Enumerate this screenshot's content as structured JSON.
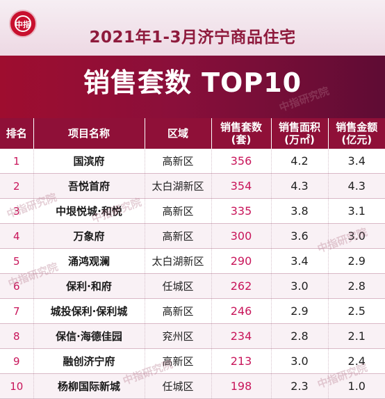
{
  "header": {
    "logo_text": "中指",
    "title_line1": "2021年1-3月济宁商品住宅",
    "title_line2": "销售套数 TOP10",
    "watermark": "中指研究院"
  },
  "table": {
    "columns": [
      "排名",
      "项目名称",
      "区域",
      "销售套数\n(套)",
      "销售面积\n(万㎡)",
      "销售金额\n(亿元)"
    ],
    "rows": [
      {
        "rank": "1",
        "name": "国滨府",
        "district": "高新区",
        "units": "356",
        "area": "4.2",
        "amount": "3.4"
      },
      {
        "rank": "2",
        "name": "吾悦首府",
        "district": "太白湖新区",
        "units": "354",
        "area": "4.3",
        "amount": "4.3"
      },
      {
        "rank": "3",
        "name": "中垠悦城·和悦",
        "district": "高新区",
        "units": "335",
        "area": "3.8",
        "amount": "3.1"
      },
      {
        "rank": "4",
        "name": "万象府",
        "district": "高新区",
        "units": "300",
        "area": "3.6",
        "amount": "3.0"
      },
      {
        "rank": "5",
        "name": "涌鸿观澜",
        "district": "太白湖新区",
        "units": "290",
        "area": "3.4",
        "amount": "2.9"
      },
      {
        "rank": "6",
        "name": "保利·和府",
        "district": "任城区",
        "units": "262",
        "area": "3.0",
        "amount": "2.8"
      },
      {
        "rank": "7",
        "name": "城投保利·保利城",
        "district": "高新区",
        "units": "246",
        "area": "2.9",
        "amount": "2.5"
      },
      {
        "rank": "8",
        "name": "保信·海德佳园",
        "district": "兖州区",
        "units": "234",
        "area": "2.8",
        "amount": "2.1"
      },
      {
        "rank": "9",
        "name": "融创济宁府",
        "district": "高新区",
        "units": "213",
        "area": "3.0",
        "amount": "2.4"
      },
      {
        "rank": "10",
        "name": "杨柳国际新城",
        "district": "任城区",
        "units": "198",
        "area": "2.3",
        "amount": "1.0"
      }
    ]
  }
}
